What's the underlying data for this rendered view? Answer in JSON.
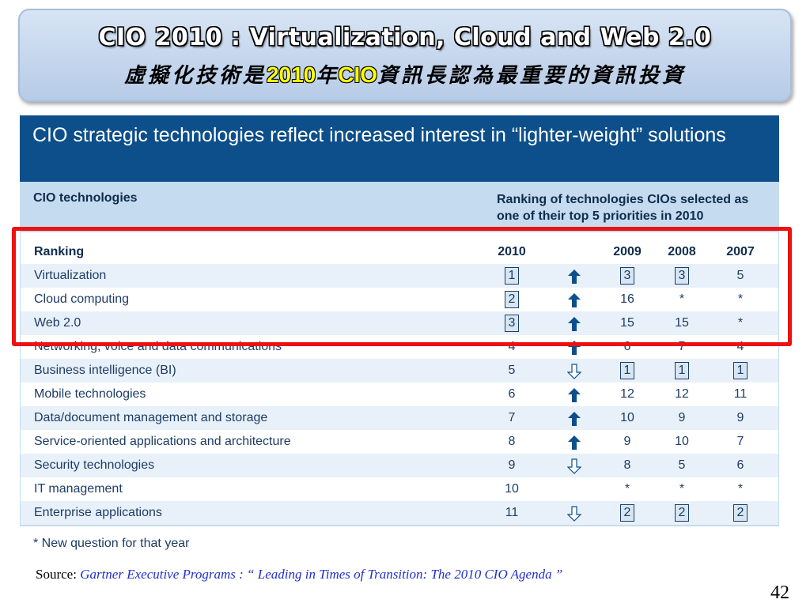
{
  "title": {
    "line1": "CIO 2010 : Virtualization, Cloud and Web 2.0",
    "line2_part1": "虛擬化技術是",
    "line2_year": "2010",
    "line2_part2": "年",
    "line2_cio": "CIO",
    "line2_part3": "資訊長認為最重要的資訊投資"
  },
  "figure": {
    "header": "CIO strategic technologies reflect increased interest in “lighter-weight” solutions",
    "col_left": "CIO technologies",
    "col_right": "Ranking of technologies CIOs selected as one of their top 5 priorities in 2010",
    "table_headers": {
      "ranking": "Ranking",
      "y2010": "2010",
      "y2009": "2009",
      "y2008": "2008",
      "y2007": "2007"
    },
    "rows": [
      {
        "name": "Virtualization",
        "y2010": "1",
        "trend": "up",
        "y2009": "3",
        "y2008": "3",
        "y2007": "5",
        "box2010": true,
        "box2009": true,
        "box2008": true,
        "box2007": false
      },
      {
        "name": "Cloud computing",
        "y2010": "2",
        "trend": "up",
        "y2009": "16",
        "y2008": "*",
        "y2007": "*",
        "box2010": true,
        "box2009": false,
        "box2008": false,
        "box2007": false
      },
      {
        "name": "Web 2.0",
        "y2010": "3",
        "trend": "up",
        "y2009": "15",
        "y2008": "15",
        "y2007": "*",
        "box2010": true,
        "box2009": false,
        "box2008": false,
        "box2007": false
      },
      {
        "name": "Networking, voice and data communications",
        "y2010": "4",
        "trend": "up",
        "y2009": "6",
        "y2008": "7",
        "y2007": "4",
        "box2010": false,
        "box2009": false,
        "box2008": false,
        "box2007": false
      },
      {
        "name": "Business intelligence (BI)",
        "y2010": "5",
        "trend": "down",
        "y2009": "1",
        "y2008": "1",
        "y2007": "1",
        "box2010": false,
        "box2009": true,
        "box2008": true,
        "box2007": true
      },
      {
        "name": "Mobile technologies",
        "y2010": "6",
        "trend": "up",
        "y2009": "12",
        "y2008": "12",
        "y2007": "11",
        "box2010": false,
        "box2009": false,
        "box2008": false,
        "box2007": false
      },
      {
        "name": "Data/document management and storage",
        "y2010": "7",
        "trend": "up",
        "y2009": "10",
        "y2008": "9",
        "y2007": "9",
        "box2010": false,
        "box2009": false,
        "box2008": false,
        "box2007": false
      },
      {
        "name": "Service-oriented applications and architecture",
        "y2010": "8",
        "trend": "up",
        "y2009": "9",
        "y2008": "10",
        "y2007": "7",
        "box2010": false,
        "box2009": false,
        "box2008": false,
        "box2007": false
      },
      {
        "name": "Security technologies",
        "y2010": "9",
        "trend": "down",
        "y2009": "8",
        "y2008": "5",
        "y2007": "6",
        "box2010": false,
        "box2009": false,
        "box2008": false,
        "box2007": false
      },
      {
        "name": "IT management",
        "y2010": "10",
        "trend": "none",
        "y2009": "*",
        "y2008": "*",
        "y2007": "*",
        "box2010": false,
        "box2009": false,
        "box2008": false,
        "box2007": false
      },
      {
        "name": "Enterprise applications",
        "y2010": "11",
        "trend": "down",
        "y2009": "2",
        "y2008": "2",
        "y2007": "2",
        "box2010": false,
        "box2009": true,
        "box2008": true,
        "box2007": true
      }
    ],
    "footnote": "* New question for that year"
  },
  "source": {
    "label": "Source:",
    "citation": "Gartner Executive Programs : “ Leading in Times of Transition: The 2010 CIO Agenda ”"
  },
  "page_number": "42",
  "colors": {
    "header_blue": "#0d4f8a",
    "highlight_red": "#ee1111"
  }
}
